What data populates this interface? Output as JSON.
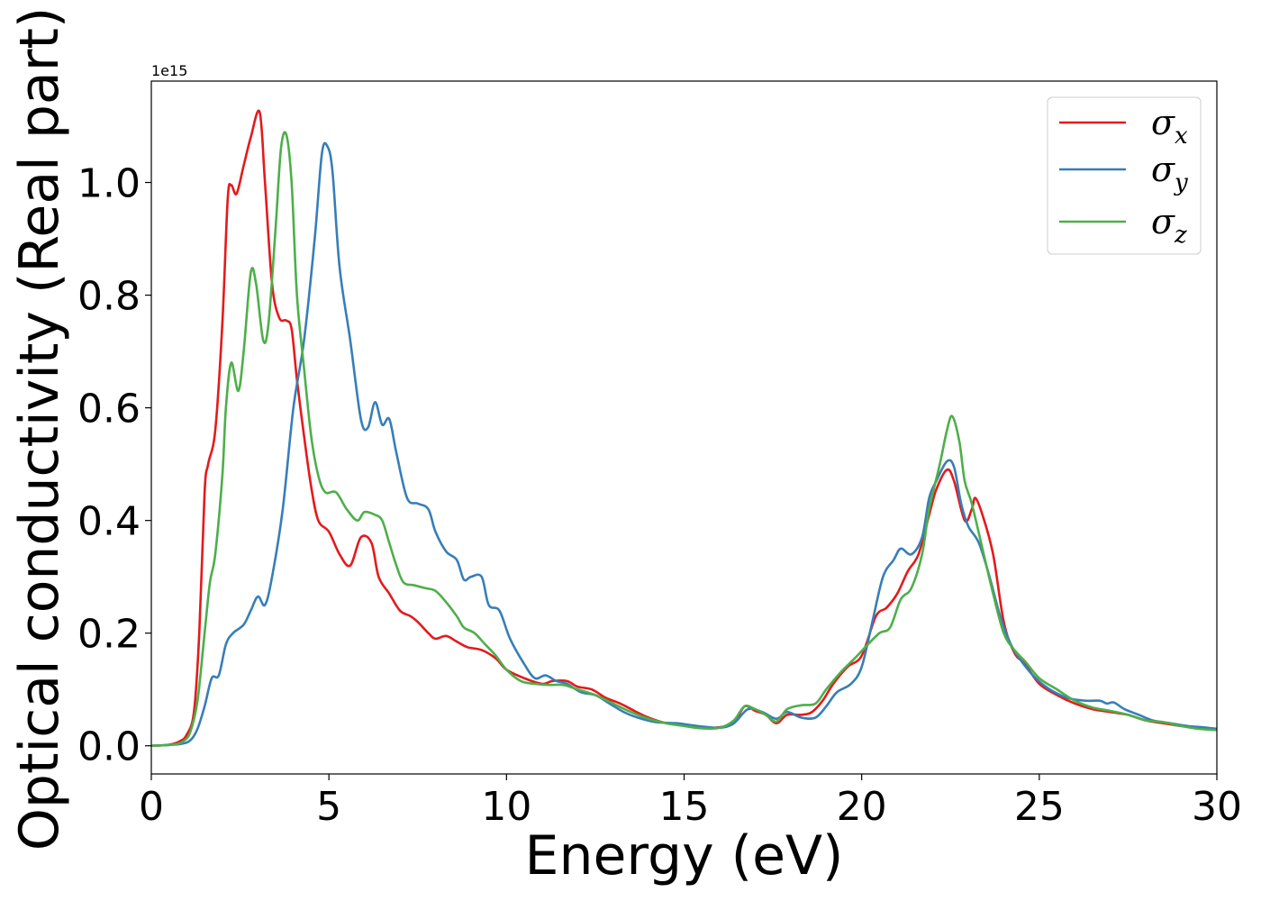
{
  "chart_data": {
    "type": "line",
    "title": "",
    "xlabel": "Energy (eV)",
    "ylabel": "Optical conductivity (Real part)",
    "y_offset_label": "1e15",
    "xlim": [
      0,
      30
    ],
    "ylim": [
      -0.05,
      1.18
    ],
    "x_ticks": [
      0,
      5,
      10,
      15,
      20,
      25,
      30
    ],
    "x_tick_labels": [
      "0",
      "5",
      "10",
      "15",
      "20",
      "25",
      "30"
    ],
    "y_ticks": [
      0.0,
      0.2,
      0.4,
      0.6,
      0.8,
      1.0
    ],
    "y_tick_labels": [
      "0.0",
      "0.2",
      "0.4",
      "0.6",
      "0.8",
      "1.0"
    ],
    "grid": false,
    "legend_position": "top-right",
    "series": [
      {
        "name": "σx",
        "label_base": "σ",
        "label_sub": "x",
        "color": "#e41a1c",
        "points": [
          [
            0,
            0
          ],
          [
            0.5,
            0.002
          ],
          [
            0.8,
            0.008
          ],
          [
            1.0,
            0.02
          ],
          [
            1.2,
            0.06
          ],
          [
            1.35,
            0.2
          ],
          [
            1.5,
            0.45
          ],
          [
            1.6,
            0.5
          ],
          [
            1.8,
            0.56
          ],
          [
            2.0,
            0.75
          ],
          [
            2.15,
            0.97
          ],
          [
            2.25,
            0.995
          ],
          [
            2.4,
            0.98
          ],
          [
            2.6,
            1.03
          ],
          [
            2.8,
            1.08
          ],
          [
            3.05,
            1.125
          ],
          [
            3.2,
            1.0
          ],
          [
            3.4,
            0.82
          ],
          [
            3.6,
            0.76
          ],
          [
            3.8,
            0.755
          ],
          [
            3.95,
            0.74
          ],
          [
            4.1,
            0.65
          ],
          [
            4.3,
            0.55
          ],
          [
            4.5,
            0.46
          ],
          [
            4.7,
            0.4
          ],
          [
            5.0,
            0.38
          ],
          [
            5.3,
            0.34
          ],
          [
            5.6,
            0.32
          ],
          [
            5.9,
            0.37
          ],
          [
            6.2,
            0.36
          ],
          [
            6.4,
            0.3
          ],
          [
            6.7,
            0.27
          ],
          [
            7.0,
            0.24
          ],
          [
            7.3,
            0.23
          ],
          [
            7.5,
            0.22
          ],
          [
            7.8,
            0.2
          ],
          [
            8.0,
            0.19
          ],
          [
            8.3,
            0.195
          ],
          [
            8.6,
            0.185
          ],
          [
            8.9,
            0.175
          ],
          [
            9.3,
            0.17
          ],
          [
            9.7,
            0.155
          ],
          [
            10.0,
            0.135
          ],
          [
            10.5,
            0.12
          ],
          [
            11.0,
            0.11
          ],
          [
            11.3,
            0.115
          ],
          [
            11.7,
            0.115
          ],
          [
            12.0,
            0.105
          ],
          [
            12.4,
            0.1
          ],
          [
            12.8,
            0.085
          ],
          [
            13.2,
            0.075
          ],
          [
            13.6,
            0.062
          ],
          [
            14.0,
            0.05
          ],
          [
            14.5,
            0.04
          ],
          [
            15.0,
            0.036
          ],
          [
            15.5,
            0.032
          ],
          [
            16.0,
            0.033
          ],
          [
            16.4,
            0.04
          ],
          [
            16.7,
            0.07
          ],
          [
            17.0,
            0.062
          ],
          [
            17.3,
            0.055
          ],
          [
            17.6,
            0.04
          ],
          [
            17.9,
            0.055
          ],
          [
            18.3,
            0.055
          ],
          [
            18.6,
            0.06
          ],
          [
            18.9,
            0.08
          ],
          [
            19.2,
            0.11
          ],
          [
            19.6,
            0.14
          ],
          [
            20.0,
            0.16
          ],
          [
            20.4,
            0.23
          ],
          [
            20.7,
            0.245
          ],
          [
            21.0,
            0.27
          ],
          [
            21.3,
            0.31
          ],
          [
            21.6,
            0.34
          ],
          [
            21.9,
            0.41
          ],
          [
            22.1,
            0.455
          ],
          [
            22.4,
            0.49
          ],
          [
            22.6,
            0.47
          ],
          [
            22.9,
            0.4
          ],
          [
            23.1,
            0.42
          ],
          [
            23.2,
            0.44
          ],
          [
            23.4,
            0.41
          ],
          [
            23.7,
            0.34
          ],
          [
            24.0,
            0.22
          ],
          [
            24.3,
            0.165
          ],
          [
            24.6,
            0.145
          ],
          [
            25.0,
            0.11
          ],
          [
            25.5,
            0.09
          ],
          [
            26.0,
            0.075
          ],
          [
            26.5,
            0.065
          ],
          [
            27.0,
            0.06
          ],
          [
            27.5,
            0.055
          ],
          [
            28.0,
            0.045
          ],
          [
            28.5,
            0.04
          ],
          [
            29.0,
            0.035
          ],
          [
            29.5,
            0.032
          ],
          [
            30.0,
            0.03
          ]
        ]
      },
      {
        "name": "σy",
        "label_base": "σ",
        "label_sub": "y",
        "color": "#377eb8",
        "points": [
          [
            0,
            0
          ],
          [
            0.8,
            0.003
          ],
          [
            1.1,
            0.01
          ],
          [
            1.3,
            0.03
          ],
          [
            1.5,
            0.07
          ],
          [
            1.7,
            0.12
          ],
          [
            1.9,
            0.125
          ],
          [
            2.1,
            0.18
          ],
          [
            2.3,
            0.2
          ],
          [
            2.6,
            0.215
          ],
          [
            2.8,
            0.24
          ],
          [
            3.0,
            0.265
          ],
          [
            3.2,
            0.25
          ],
          [
            3.4,
            0.3
          ],
          [
            3.7,
            0.42
          ],
          [
            4.0,
            0.6
          ],
          [
            4.3,
            0.72
          ],
          [
            4.6,
            0.9
          ],
          [
            4.8,
            1.05
          ],
          [
            4.95,
            1.065
          ],
          [
            5.1,
            1.02
          ],
          [
            5.3,
            0.85
          ],
          [
            5.6,
            0.72
          ],
          [
            5.9,
            0.58
          ],
          [
            6.1,
            0.565
          ],
          [
            6.3,
            0.61
          ],
          [
            6.5,
            0.57
          ],
          [
            6.7,
            0.58
          ],
          [
            6.9,
            0.52
          ],
          [
            7.2,
            0.44
          ],
          [
            7.5,
            0.43
          ],
          [
            7.8,
            0.42
          ],
          [
            8.0,
            0.38
          ],
          [
            8.3,
            0.345
          ],
          [
            8.6,
            0.33
          ],
          [
            8.8,
            0.295
          ],
          [
            9.0,
            0.3
          ],
          [
            9.3,
            0.3
          ],
          [
            9.5,
            0.25
          ],
          [
            9.8,
            0.24
          ],
          [
            10.1,
            0.19
          ],
          [
            10.5,
            0.145
          ],
          [
            10.8,
            0.12
          ],
          [
            11.1,
            0.125
          ],
          [
            11.4,
            0.115
          ],
          [
            11.7,
            0.11
          ],
          [
            12.1,
            0.095
          ],
          [
            12.5,
            0.09
          ],
          [
            12.9,
            0.075
          ],
          [
            13.3,
            0.06
          ],
          [
            13.7,
            0.05
          ],
          [
            14.2,
            0.042
          ],
          [
            14.8,
            0.04
          ],
          [
            15.4,
            0.035
          ],
          [
            16.0,
            0.032
          ],
          [
            16.4,
            0.04
          ],
          [
            16.8,
            0.065
          ],
          [
            17.2,
            0.06
          ],
          [
            17.6,
            0.048
          ],
          [
            17.9,
            0.06
          ],
          [
            18.3,
            0.05
          ],
          [
            18.7,
            0.05
          ],
          [
            19.0,
            0.07
          ],
          [
            19.3,
            0.095
          ],
          [
            19.7,
            0.11
          ],
          [
            20.0,
            0.14
          ],
          [
            20.3,
            0.22
          ],
          [
            20.6,
            0.3
          ],
          [
            20.9,
            0.33
          ],
          [
            21.1,
            0.35
          ],
          [
            21.4,
            0.34
          ],
          [
            21.7,
            0.37
          ],
          [
            21.9,
            0.44
          ],
          [
            22.1,
            0.47
          ],
          [
            22.4,
            0.505
          ],
          [
            22.6,
            0.495
          ],
          [
            22.8,
            0.43
          ],
          [
            23.0,
            0.39
          ],
          [
            23.3,
            0.36
          ],
          [
            23.6,
            0.3
          ],
          [
            23.9,
            0.23
          ],
          [
            24.2,
            0.18
          ],
          [
            24.5,
            0.15
          ],
          [
            24.9,
            0.12
          ],
          [
            25.3,
            0.1
          ],
          [
            25.8,
            0.085
          ],
          [
            26.3,
            0.08
          ],
          [
            26.7,
            0.08
          ],
          [
            26.9,
            0.075
          ],
          [
            27.1,
            0.077
          ],
          [
            27.4,
            0.065
          ],
          [
            27.8,
            0.055
          ],
          [
            28.2,
            0.045
          ],
          [
            28.7,
            0.04
          ],
          [
            29.2,
            0.035
          ],
          [
            29.6,
            0.033
          ],
          [
            30.0,
            0.03
          ]
        ]
      },
      {
        "name": "σz",
        "label_base": "σ",
        "label_sub": "z",
        "color": "#4daf4a",
        "points": [
          [
            0,
            0
          ],
          [
            0.6,
            0.002
          ],
          [
            0.9,
            0.008
          ],
          [
            1.1,
            0.025
          ],
          [
            1.3,
            0.08
          ],
          [
            1.5,
            0.2
          ],
          [
            1.65,
            0.29
          ],
          [
            1.8,
            0.34
          ],
          [
            2.0,
            0.48
          ],
          [
            2.1,
            0.6
          ],
          [
            2.25,
            0.68
          ],
          [
            2.45,
            0.63
          ],
          [
            2.6,
            0.7
          ],
          [
            2.8,
            0.84
          ],
          [
            2.95,
            0.82
          ],
          [
            3.15,
            0.72
          ],
          [
            3.3,
            0.75
          ],
          [
            3.5,
            0.92
          ],
          [
            3.65,
            1.06
          ],
          [
            3.8,
            1.085
          ],
          [
            3.95,
            1.0
          ],
          [
            4.1,
            0.8
          ],
          [
            4.3,
            0.67
          ],
          [
            4.5,
            0.55
          ],
          [
            4.7,
            0.48
          ],
          [
            4.9,
            0.45
          ],
          [
            5.2,
            0.45
          ],
          [
            5.5,
            0.42
          ],
          [
            5.8,
            0.4
          ],
          [
            6.0,
            0.415
          ],
          [
            6.3,
            0.41
          ],
          [
            6.5,
            0.4
          ],
          [
            6.7,
            0.36
          ],
          [
            6.9,
            0.32
          ],
          [
            7.1,
            0.29
          ],
          [
            7.4,
            0.285
          ],
          [
            7.7,
            0.28
          ],
          [
            8.0,
            0.275
          ],
          [
            8.3,
            0.255
          ],
          [
            8.6,
            0.23
          ],
          [
            8.8,
            0.21
          ],
          [
            9.1,
            0.2
          ],
          [
            9.4,
            0.18
          ],
          [
            9.7,
            0.16
          ],
          [
            10.0,
            0.135
          ],
          [
            10.4,
            0.115
          ],
          [
            10.8,
            0.11
          ],
          [
            11.2,
            0.108
          ],
          [
            11.6,
            0.108
          ],
          [
            12.0,
            0.1
          ],
          [
            12.5,
            0.09
          ],
          [
            13.0,
            0.075
          ],
          [
            13.5,
            0.06
          ],
          [
            14.0,
            0.048
          ],
          [
            14.5,
            0.04
          ],
          [
            15.0,
            0.035
          ],
          [
            15.5,
            0.031
          ],
          [
            16.0,
            0.032
          ],
          [
            16.4,
            0.045
          ],
          [
            16.7,
            0.07
          ],
          [
            17.0,
            0.065
          ],
          [
            17.3,
            0.055
          ],
          [
            17.6,
            0.043
          ],
          [
            17.9,
            0.065
          ],
          [
            18.3,
            0.072
          ],
          [
            18.7,
            0.075
          ],
          [
            19.0,
            0.1
          ],
          [
            19.4,
            0.13
          ],
          [
            19.8,
            0.155
          ],
          [
            20.1,
            0.175
          ],
          [
            20.5,
            0.2
          ],
          [
            20.8,
            0.21
          ],
          [
            21.1,
            0.26
          ],
          [
            21.4,
            0.28
          ],
          [
            21.7,
            0.34
          ],
          [
            21.9,
            0.42
          ],
          [
            22.2,
            0.5
          ],
          [
            22.4,
            0.56
          ],
          [
            22.55,
            0.585
          ],
          [
            22.75,
            0.54
          ],
          [
            22.9,
            0.47
          ],
          [
            23.1,
            0.43
          ],
          [
            23.4,
            0.35
          ],
          [
            23.7,
            0.27
          ],
          [
            24.0,
            0.2
          ],
          [
            24.3,
            0.17
          ],
          [
            24.6,
            0.15
          ],
          [
            25.0,
            0.12
          ],
          [
            25.5,
            0.1
          ],
          [
            26.0,
            0.08
          ],
          [
            26.5,
            0.068
          ],
          [
            27.0,
            0.062
          ],
          [
            27.5,
            0.055
          ],
          [
            28.0,
            0.045
          ],
          [
            28.5,
            0.042
          ],
          [
            29.0,
            0.035
          ],
          [
            29.5,
            0.03
          ],
          [
            30.0,
            0.028
          ]
        ]
      }
    ]
  }
}
